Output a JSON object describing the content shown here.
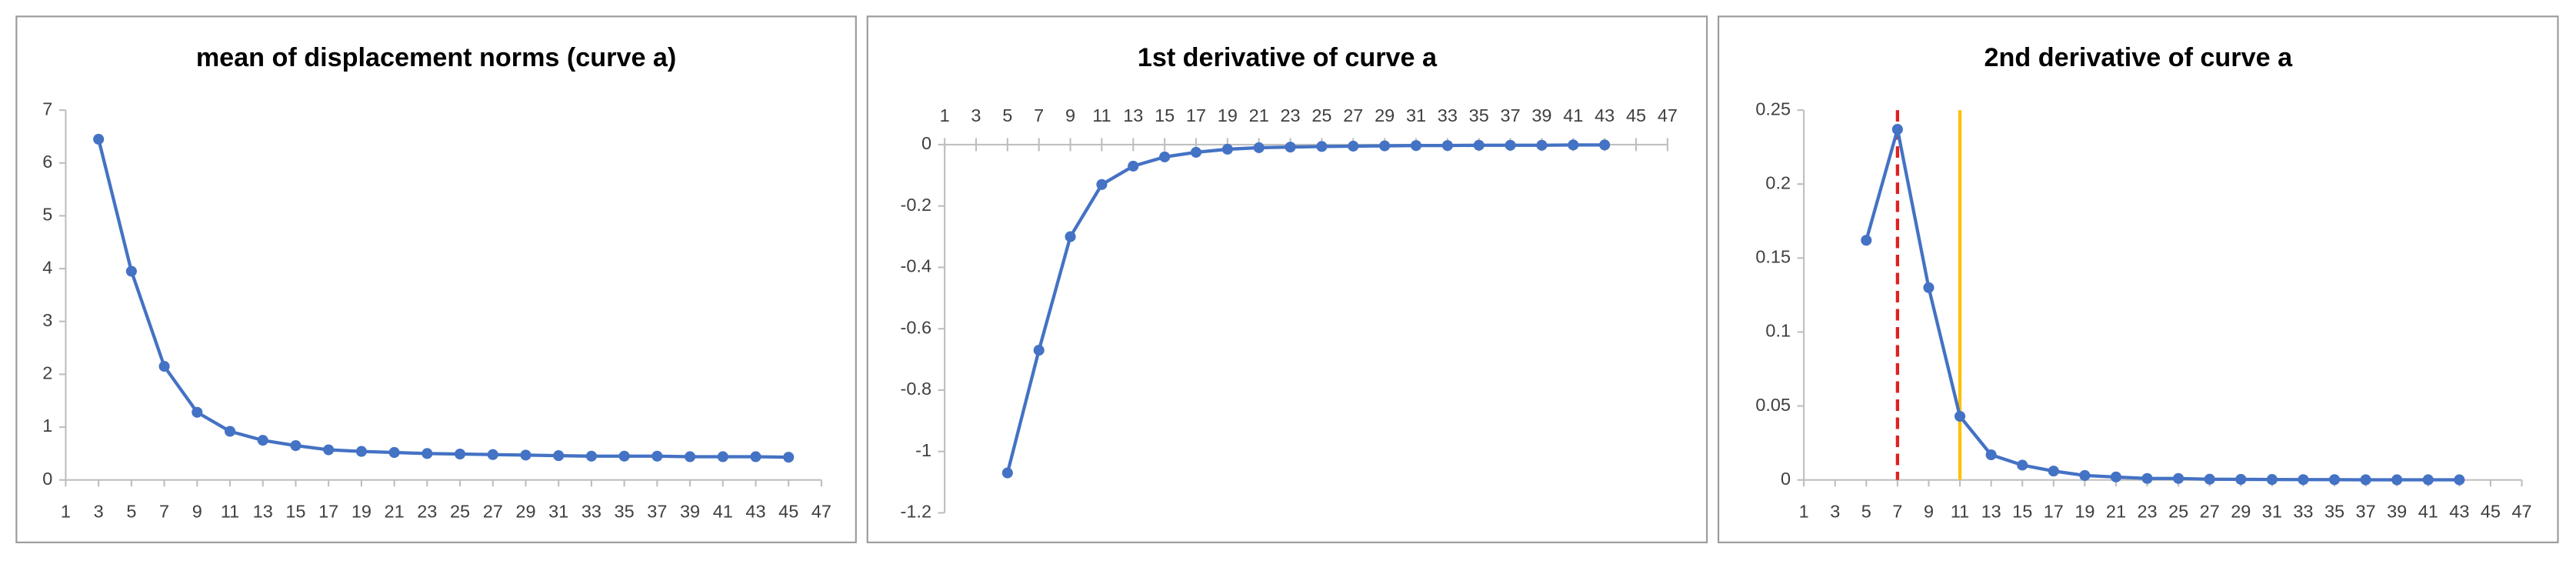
{
  "chart_data": [
    {
      "type": "line",
      "title": "mean of displacement norms (curve a)",
      "color": "#4472c4",
      "x": [
        3,
        5,
        7,
        9,
        11,
        13,
        15,
        17,
        19,
        21,
        23,
        25,
        27,
        29,
        31,
        33,
        35,
        37,
        39,
        41,
        43,
        45
      ],
      "values": [
        6.45,
        3.95,
        2.15,
        1.28,
        0.92,
        0.75,
        0.65,
        0.57,
        0.54,
        0.52,
        0.5,
        0.49,
        0.48,
        0.47,
        0.46,
        0.45,
        0.45,
        0.45,
        0.44,
        0.44,
        0.44,
        0.43
      ],
      "xlim": [
        1,
        47
      ],
      "xticks": [
        1,
        3,
        5,
        7,
        9,
        11,
        13,
        15,
        17,
        19,
        21,
        23,
        25,
        27,
        29,
        31,
        33,
        35,
        37,
        39,
        41,
        43,
        45,
        47
      ],
      "ylim": [
        0,
        7
      ],
      "yticks": [
        0,
        1,
        2,
        3,
        4,
        5,
        6,
        7
      ]
    },
    {
      "type": "line",
      "title": "1st derivative of curve a",
      "color": "#4472c4",
      "x": [
        5,
        7,
        9,
        11,
        13,
        15,
        17,
        19,
        21,
        23,
        25,
        27,
        29,
        31,
        33,
        35,
        37,
        39,
        41,
        43
      ],
      "values": [
        -1.07,
        -0.67,
        -0.3,
        -0.13,
        -0.07,
        -0.04,
        -0.025,
        -0.015,
        -0.01,
        -0.008,
        -0.006,
        -0.005,
        -0.004,
        -0.003,
        -0.003,
        -0.002,
        -0.002,
        -0.002,
        -0.001,
        -0.001
      ],
      "xlim": [
        1,
        47
      ],
      "xticks": [
        1,
        3,
        5,
        7,
        9,
        11,
        13,
        15,
        17,
        19,
        21,
        23,
        25,
        27,
        29,
        31,
        33,
        35,
        37,
        39,
        41,
        43,
        45,
        47
      ],
      "ylim": [
        -1.2,
        0
      ],
      "yticks": [
        -1.2,
        -1,
        -0.8,
        -0.6,
        -0.4,
        -0.2,
        0
      ]
    },
    {
      "type": "line",
      "title": "2nd derivative of curve a",
      "color": "#4472c4",
      "x": [
        5,
        7,
        9,
        11,
        13,
        15,
        17,
        19,
        21,
        23,
        25,
        27,
        29,
        31,
        33,
        35,
        37,
        39,
        41,
        43
      ],
      "values": [
        0.162,
        0.237,
        0.13,
        0.043,
        0.017,
        0.01,
        0.006,
        0.003,
        0.002,
        0.001,
        0.001,
        0.0005,
        0.0004,
        0.0003,
        0.0002,
        0.0002,
        0.0001,
        0.0001,
        0.0001,
        0.0001
      ],
      "xlim": [
        1,
        47
      ],
      "xticks": [
        1,
        3,
        5,
        7,
        9,
        11,
        13,
        15,
        17,
        19,
        21,
        23,
        25,
        27,
        29,
        31,
        33,
        35,
        37,
        39,
        41,
        43,
        45,
        47
      ],
      "ylim": [
        0,
        0.25
      ],
      "yticks": [
        0,
        0.05,
        0.1,
        0.15,
        0.2,
        0.25
      ],
      "vlines": [
        {
          "x": 7,
          "color": "#e02020",
          "dashed": true
        },
        {
          "x": 11,
          "color": "#ffc000",
          "dashed": false
        }
      ]
    }
  ]
}
